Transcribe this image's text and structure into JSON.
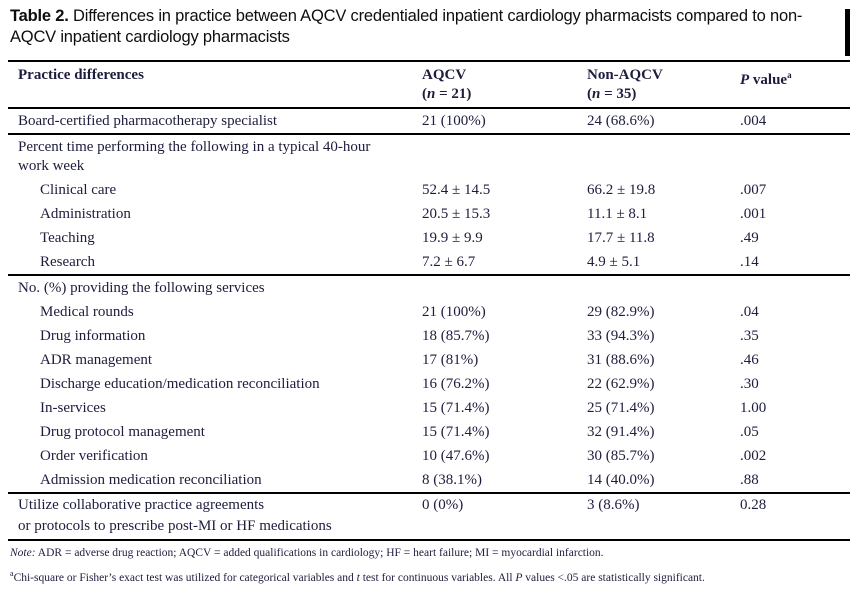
{
  "title": {
    "bold": "Table 2.",
    "rest": " Differences in practice between AQCV credentialed inpatient cardiology pharmacists compared to non-AQCV inpatient cardiology pharmacists"
  },
  "colors": {
    "text": "#1d1d3d",
    "title_text": "#0e0e0e",
    "rule": "#000000"
  },
  "table": {
    "columns": [
      {
        "header": "Practice differences"
      },
      {
        "header": "AQCV",
        "sub_prefix": "(",
        "sub_italic": "n",
        "sub_suffix": " = 21)"
      },
      {
        "header": "Non-AQCV",
        "sub_prefix": "(",
        "sub_italic": "n",
        "sub_suffix": " = 35)"
      },
      {
        "header_italic": "P",
        "header_rest": " value",
        "sup": "a"
      }
    ],
    "rows": [
      {
        "type": "data",
        "indent": false,
        "label": "Board-certified pharmacotherapy specialist",
        "aqcv": "21 (100%)",
        "nonaqcv": "24 (68.6%)",
        "pvalue": ".004",
        "border_bottom": true
      },
      {
        "type": "section",
        "label": "Percent time performing the following in a typical 40-hour",
        "label2": "work week"
      },
      {
        "type": "data",
        "indent": true,
        "label": "Clinical care",
        "aqcv": "52.4 ± 14.5",
        "nonaqcv": "66.2 ± 19.8",
        "pvalue": ".007"
      },
      {
        "type": "data",
        "indent": true,
        "label": "Administration",
        "aqcv": "20.5 ± 15.3",
        "nonaqcv": "11.1 ± 8.1",
        "pvalue": ".001"
      },
      {
        "type": "data",
        "indent": true,
        "label": "Teaching",
        "aqcv": "19.9 ± 9.9",
        "nonaqcv": "17.7 ± 11.8",
        "pvalue": ".49"
      },
      {
        "type": "data",
        "indent": true,
        "label": "Research",
        "aqcv": "7.2 ± 6.7",
        "nonaqcv": "4.9 ± 5.1",
        "pvalue": ".14",
        "border_bottom": true
      },
      {
        "type": "section",
        "label": "No. (%) providing the following services"
      },
      {
        "type": "data",
        "indent": true,
        "label": "Medical rounds",
        "aqcv": "21 (100%)",
        "nonaqcv": "29 (82.9%)",
        "pvalue": ".04"
      },
      {
        "type": "data",
        "indent": true,
        "label": "Drug information",
        "aqcv": "18 (85.7%)",
        "nonaqcv": "33 (94.3%)",
        "pvalue": ".35"
      },
      {
        "type": "data",
        "indent": true,
        "label": "ADR management",
        "aqcv": "17 (81%)",
        "nonaqcv": "31 (88.6%)",
        "pvalue": ".46"
      },
      {
        "type": "data",
        "indent": true,
        "label": "Discharge education/medication reconciliation",
        "aqcv": "16 (76.2%)",
        "nonaqcv": "22 (62.9%)",
        "pvalue": ".30"
      },
      {
        "type": "data",
        "indent": true,
        "label": "In-services",
        "aqcv": "15 (71.4%)",
        "nonaqcv": "25 (71.4%)",
        "pvalue": "1.00"
      },
      {
        "type": "data",
        "indent": true,
        "label": "Drug protocol management",
        "aqcv": "15 (71.4%)",
        "nonaqcv": "32 (91.4%)",
        "pvalue": ".05"
      },
      {
        "type": "data",
        "indent": true,
        "label": "Order verification",
        "aqcv": "10 (47.6%)",
        "nonaqcv": "30 (85.7%)",
        "pvalue": ".002"
      },
      {
        "type": "data",
        "indent": true,
        "label": "Admission medication reconciliation",
        "aqcv": "8 (38.1%)",
        "nonaqcv": "14 (40.0%)",
        "pvalue": ".88",
        "border_bottom": true
      },
      {
        "type": "data",
        "indent": false,
        "label": "Utilize collaborative practice agreements",
        "label2": "or protocols to prescribe post-MI or HF medications",
        "aqcv": "0 (0%)",
        "nonaqcv": "3 (8.6%)",
        "pvalue": "0.28"
      }
    ]
  },
  "footnotes": {
    "note_label": "Note:",
    "note_text": " ADR = adverse drug reaction; AQCV = added qualifications in cardiology; HF = heart failure; MI = myocardial infarction.",
    "sup": "a",
    "chi_pre": "Chi-square or Fisher’s exact test was utilized for categorical variables and ",
    "t_italic": "t",
    "chi_mid": " test for continuous variables. All ",
    "p_italic": "P",
    "chi_post": " values <.05 are statistically significant."
  }
}
